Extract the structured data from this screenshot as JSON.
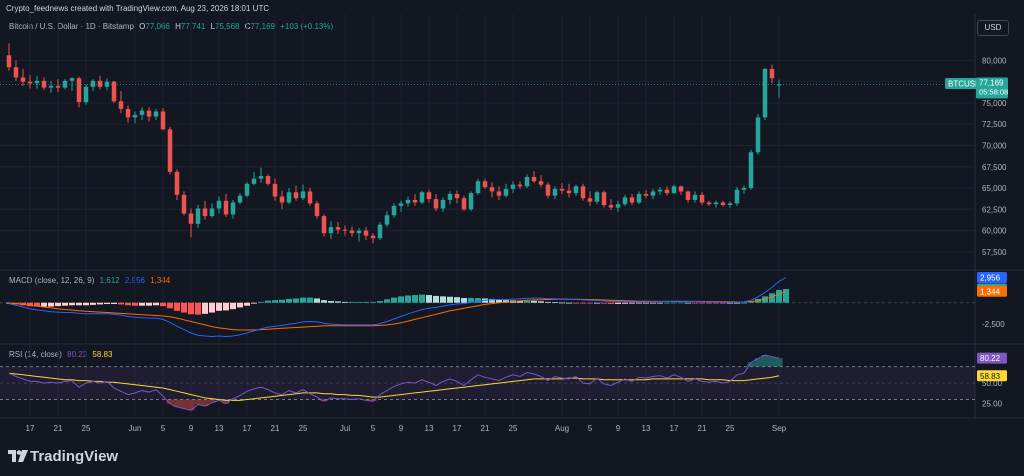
{
  "header": {
    "created_line": "Crypto_feednews created with TradingView.com, Aug 23, 2026 18:01 UTC",
    "currency_button": "USD"
  },
  "price_legend": {
    "symbol_desc": "Bitcoin / U.S. Dollar · 1D · Bitstamp",
    "o_label": "O",
    "o": "77,066",
    "h_label": "H",
    "h": "77,741",
    "l_label": "L",
    "l": "75,568",
    "c_label": "C",
    "c": "77,169",
    "change": "+103 (+0.13%)"
  },
  "macd_legend": {
    "label": "MACD (close, 12, 26, 9)",
    "hist": "1,612",
    "macd": "2,956",
    "signal": "1,344"
  },
  "rsi_legend": {
    "label": "RSI (14, close)",
    "rsi": "80.22",
    "ma": "58.83"
  },
  "price_tag": {
    "symbol": "BTCUSD",
    "price": "77,169",
    "countdown": "05:58:08"
  },
  "macd_tags": {
    "macd": "2,956",
    "hist": "1,612",
    "signal": "1,344"
  },
  "macd_axis": [
    "-2,500"
  ],
  "rsi_tags": {
    "rsi": "80.22",
    "ma": "58.83"
  },
  "rsi_axis": [
    "50.00",
    "25.00"
  ],
  "footer": {
    "brand": "TradingView"
  },
  "colors": {
    "bg": "#131722",
    "up": "#26a69a",
    "down": "#ef5350",
    "grid": "#1e222d",
    "macd": "#2962ff",
    "signal": "#ff6d00",
    "rsi": "#7e57c2",
    "rsi_ma": "#fdd835"
  },
  "chart_data": [
    {
      "type": "candlestick",
      "title": "Bitcoin / U.S. Dollar · 1D · Bitstamp",
      "y_ticks": [
        80000,
        77500,
        75000,
        72500,
        70000,
        67500,
        65000,
        62500,
        60000,
        57500
      ],
      "y_range": [
        55600,
        82400
      ],
      "x_ticks": [
        "17",
        "21",
        "25",
        "Jun",
        "5",
        "9",
        "13",
        "17",
        "21",
        "25",
        "Jul",
        "5",
        "9",
        "13",
        "17",
        "21",
        "25",
        "Aug",
        "5",
        "9",
        "13",
        "17",
        "21",
        "25",
        "Sep"
      ],
      "start_date": "2026-05-14",
      "ohlc": [
        [
          80600,
          82000,
          78800,
          79200
        ],
        [
          79200,
          80000,
          77600,
          78000
        ],
        [
          78000,
          79000,
          77000,
          77500
        ],
        [
          77500,
          78300,
          76700,
          77300
        ],
        [
          77300,
          78200,
          76700,
          77600
        ],
        [
          77600,
          78000,
          76500,
          76800
        ],
        [
          76800,
          77600,
          76200,
          77000
        ],
        [
          77000,
          77800,
          76300,
          76800
        ],
        [
          76800,
          77800,
          76600,
          77600
        ],
        [
          77600,
          78000,
          76400,
          77900
        ],
        [
          77900,
          78100,
          74500,
          75100
        ],
        [
          75100,
          77200,
          74800,
          76900
        ],
        [
          76900,
          77800,
          76400,
          77600
        ],
        [
          77600,
          78200,
          76600,
          76900
        ],
        [
          76900,
          77900,
          76500,
          77500
        ],
        [
          77500,
          77600,
          75000,
          75200
        ],
        [
          75200,
          76400,
          73800,
          74300
        ],
        [
          74300,
          74700,
          72700,
          73300
        ],
        [
          73300,
          74000,
          72600,
          73600
        ],
        [
          73600,
          74500,
          73000,
          74100
        ],
        [
          74100,
          74500,
          72800,
          73400
        ],
        [
          73400,
          74300,
          73000,
          74000
        ],
        [
          74000,
          74400,
          71800,
          71900
        ],
        [
          71900,
          72200,
          66600,
          66900
        ],
        [
          66900,
          67200,
          63600,
          64200
        ],
        [
          64200,
          64600,
          61800,
          62000
        ],
        [
          62000,
          62600,
          59200,
          60800
        ],
        [
          60800,
          63000,
          60300,
          62600
        ],
        [
          62600,
          63500,
          61300,
          61700
        ],
        [
          61700,
          63200,
          61500,
          62600
        ],
        [
          62600,
          64000,
          62000,
          63500
        ],
        [
          63500,
          64300,
          61600,
          61900
        ],
        [
          61900,
          63600,
          61400,
          63300
        ],
        [
          63300,
          64400,
          63100,
          64100
        ],
        [
          64100,
          65700,
          63900,
          65500
        ],
        [
          65500,
          66900,
          65300,
          66100
        ],
        [
          66100,
          67400,
          65600,
          66400
        ],
        [
          66400,
          66600,
          65300,
          65500
        ],
        [
          65500,
          66100,
          63500,
          64000
        ],
        [
          64000,
          64700,
          62500,
          63300
        ],
        [
          63300,
          65000,
          63100,
          64500
        ],
        [
          64500,
          65300,
          63500,
          63800
        ],
        [
          63800,
          65400,
          63600,
          64600
        ],
        [
          64600,
          65000,
          62900,
          63200
        ],
        [
          63200,
          63500,
          61400,
          61700
        ],
        [
          61700,
          61900,
          59300,
          59700
        ],
        [
          59700,
          61100,
          59000,
          60400
        ],
        [
          60400,
          61000,
          59600,
          60100
        ],
        [
          60100,
          60600,
          59400,
          60000
        ],
        [
          60000,
          60500,
          59300,
          59700
        ],
        [
          59700,
          60300,
          58700,
          60000
        ],
        [
          60000,
          60400,
          58900,
          59400
        ],
        [
          59400,
          59700,
          58500,
          59100
        ],
        [
          59100,
          61000,
          58900,
          60700
        ],
        [
          60700,
          62300,
          60400,
          61800
        ],
        [
          61800,
          63200,
          61500,
          62900
        ],
        [
          62900,
          63500,
          62200,
          63200
        ],
        [
          63200,
          64000,
          62800,
          63600
        ],
        [
          63600,
          64300,
          62900,
          63300
        ],
        [
          63300,
          64700,
          63100,
          64500
        ],
        [
          64500,
          64800,
          63300,
          63700
        ],
        [
          63700,
          64300,
          62300,
          62600
        ],
        [
          62600,
          63900,
          62200,
          63600
        ],
        [
          63600,
          64600,
          63100,
          64300
        ],
        [
          64300,
          64700,
          63200,
          63800
        ],
        [
          63800,
          64100,
          62300,
          62500
        ],
        [
          62500,
          64600,
          62300,
          64400
        ],
        [
          64400,
          66100,
          64200,
          65800
        ],
        [
          65800,
          66100,
          64900,
          65100
        ],
        [
          65100,
          65700,
          63900,
          64600
        ],
        [
          64600,
          65200,
          63600,
          64100
        ],
        [
          64100,
          65500,
          63900,
          64900
        ],
        [
          64900,
          65800,
          64400,
          65400
        ],
        [
          65400,
          65800,
          64900,
          65200
        ],
        [
          65200,
          66600,
          65000,
          66300
        ],
        [
          66300,
          67000,
          65600,
          65800
        ],
        [
          65800,
          66500,
          65100,
          65400
        ],
        [
          65400,
          65700,
          63800,
          64100
        ],
        [
          64100,
          65200,
          63700,
          64900
        ],
        [
          64900,
          65600,
          64300,
          64700
        ],
        [
          64700,
          65500,
          63900,
          64400
        ],
        [
          64400,
          65400,
          64100,
          65200
        ],
        [
          65200,
          65500,
          63500,
          63800
        ],
        [
          63800,
          64600,
          62900,
          63400
        ],
        [
          63400,
          64700,
          63100,
          64500
        ],
        [
          64500,
          64700,
          62700,
          63000
        ],
        [
          63000,
          63700,
          62400,
          62700
        ],
        [
          62700,
          63500,
          62200,
          63100
        ],
        [
          63100,
          64200,
          62900,
          63900
        ],
        [
          63900,
          64300,
          63000,
          63300
        ],
        [
          63300,
          64600,
          63100,
          64300
        ],
        [
          64300,
          64800,
          63800,
          64100
        ],
        [
          64100,
          64900,
          63700,
          64600
        ],
        [
          64600,
          65100,
          64200,
          64800
        ],
        [
          64800,
          65200,
          64100,
          64400
        ],
        [
          64400,
          65400,
          64300,
          65200
        ],
        [
          65200,
          65300,
          64200,
          64600
        ],
        [
          64600,
          64700,
          63300,
          63600
        ],
        [
          63600,
          64600,
          63300,
          64200
        ],
        [
          64200,
          64500,
          63000,
          63300
        ],
        [
          63300,
          63500,
          62900,
          63100
        ],
        [
          63100,
          63500,
          62700,
          63300
        ],
        [
          63300,
          63500,
          62800,
          63000
        ],
        [
          63000,
          63400,
          62700,
          63200
        ],
        [
          63200,
          65100,
          62900,
          64800
        ],
        [
          64800,
          65300,
          64300,
          65000
        ],
        [
          65000,
          69500,
          64800,
          69200
        ],
        [
          69200,
          73700,
          68900,
          73300
        ],
        [
          73300,
          79100,
          73000,
          79000
        ],
        [
          79000,
          79500,
          77300,
          77900
        ],
        [
          77066,
          77741,
          75568,
          77169
        ]
      ]
    },
    {
      "type": "macd",
      "title": "MACD (close, 12, 26, 9)",
      "y_range": [
        -4600,
        3600
      ],
      "zero_line": true,
      "macd": [
        -100,
        -300,
        -500,
        -700,
        -850,
        -950,
        -1050,
        -1100,
        -1150,
        -1150,
        -1250,
        -1300,
        -1300,
        -1300,
        -1300,
        -1350,
        -1450,
        -1600,
        -1700,
        -1750,
        -1800,
        -1800,
        -1950,
        -2300,
        -2750,
        -3150,
        -3550,
        -3800,
        -3900,
        -3950,
        -3900,
        -3950,
        -3900,
        -3750,
        -3550,
        -3300,
        -3050,
        -2850,
        -2750,
        -2650,
        -2500,
        -2400,
        -2250,
        -2200,
        -2250,
        -2400,
        -2500,
        -2550,
        -2600,
        -2600,
        -2600,
        -2600,
        -2600,
        -2450,
        -2200,
        -1900,
        -1600,
        -1300,
        -1050,
        -800,
        -650,
        -550,
        -400,
        -250,
        -150,
        -100,
        50,
        200,
        300,
        350,
        380,
        380,
        420,
        450,
        520,
        550,
        530,
        480,
        450,
        420,
        400,
        380,
        330,
        280,
        260,
        220,
        150,
        120,
        110,
        100,
        110,
        120,
        130,
        150,
        160,
        180,
        190,
        160,
        140,
        120,
        100,
        80,
        60,
        40,
        50,
        100,
        300,
        700,
        1200,
        1800,
        2500,
        2956
      ],
      "signal": [
        -50,
        -100,
        -200,
        -300,
        -400,
        -500,
        -600,
        -700,
        -800,
        -850,
        -950,
        -1000,
        -1050,
        -1100,
        -1150,
        -1200,
        -1250,
        -1300,
        -1350,
        -1400,
        -1450,
        -1500,
        -1550,
        -1650,
        -1800,
        -2000,
        -2200,
        -2400,
        -2600,
        -2800,
        -2950,
        -3050,
        -3150,
        -3200,
        -3200,
        -3200,
        -3150,
        -3100,
        -3050,
        -3000,
        -2950,
        -2900,
        -2850,
        -2800,
        -2750,
        -2700,
        -2700,
        -2700,
        -2700,
        -2700,
        -2700,
        -2700,
        -2700,
        -2650,
        -2600,
        -2500,
        -2350,
        -2150,
        -1950,
        -1750,
        -1550,
        -1350,
        -1150,
        -950,
        -800,
        -650,
        -500,
        -350,
        -200,
        -100,
        0,
        80,
        150,
        220,
        280,
        330,
        360,
        380,
        390,
        400,
        400,
        400,
        390,
        370,
        350,
        320,
        290,
        260,
        230,
        200,
        180,
        170,
        160,
        160,
        160,
        160,
        160,
        160,
        155,
        150,
        140,
        130,
        120,
        100,
        90,
        100,
        150,
        250,
        450,
        700,
        1000,
        1344
      ]
    },
    {
      "type": "rsi",
      "title": "RSI (14, close)",
      "y_range": [
        10,
        95
      ],
      "bands": [
        70,
        30
      ],
      "y_ticks": [
        50,
        25
      ],
      "rsi": [
        62,
        58,
        55,
        52,
        52,
        50,
        51,
        50,
        52,
        53,
        45,
        50,
        52,
        50,
        52,
        44,
        40,
        36,
        38,
        41,
        39,
        42,
        34,
        25,
        21,
        19,
        17,
        24,
        22,
        26,
        29,
        25,
        31,
        35,
        40,
        43,
        45,
        42,
        38,
        36,
        41,
        38,
        42,
        37,
        33,
        28,
        32,
        31,
        31,
        30,
        31,
        29,
        28,
        36,
        41,
        46,
        49,
        51,
        50,
        54,
        51,
        47,
        52,
        55,
        52,
        47,
        54,
        60,
        57,
        55,
        53,
        57,
        60,
        58,
        63,
        61,
        58,
        53,
        58,
        56,
        55,
        58,
        50,
        49,
        56,
        49,
        47,
        51,
        55,
        52,
        57,
        56,
        58,
        59,
        56,
        60,
        57,
        52,
        55,
        52,
        51,
        52,
        50,
        52,
        60,
        62,
        75,
        80,
        84,
        82,
        80.22
      ],
      "ma": [
        62,
        61,
        60,
        59,
        58,
        57,
        56,
        55,
        54,
        54,
        53,
        53,
        52,
        52,
        51,
        51,
        50,
        49,
        48,
        47,
        46,
        45,
        44,
        42,
        40,
        38,
        36,
        34,
        32,
        31,
        30,
        29,
        29,
        29,
        30,
        31,
        32,
        33,
        34,
        35,
        36,
        37,
        38,
        38,
        38,
        37,
        37,
        36,
        36,
        35,
        35,
        34,
        33,
        33,
        34,
        35,
        36,
        37,
        38,
        39,
        40,
        41,
        42,
        43,
        44,
        45,
        46,
        47,
        48,
        49,
        50,
        51,
        52,
        53,
        54,
        55,
        55,
        55,
        55,
        55,
        56,
        56,
        55,
        55,
        55,
        54,
        54,
        54,
        54,
        54,
        54,
        54,
        55,
        55,
        55,
        55,
        55,
        55,
        55,
        55,
        54,
        54,
        54,
        53,
        53,
        53,
        54,
        55,
        56,
        57,
        58.83
      ]
    }
  ]
}
